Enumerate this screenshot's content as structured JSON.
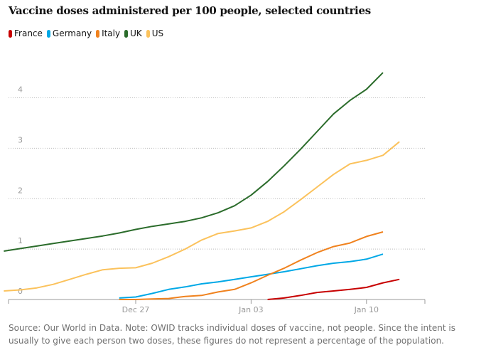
{
  "chart_data": {
    "type": "line",
    "title": "Vaccine doses administered per 100 people, selected countries",
    "source": "Source: Our World in Data. Note: OWID tracks individual doses of vaccine, not people. Since the intent is usually to give each person two doses, these figures do not represent a percentage of the population.",
    "categories": [
      null,
      null,
      null,
      null,
      null,
      null,
      null,
      null,
      "Dec 27",
      null,
      null,
      null,
      null,
      null,
      null,
      "Jan 03",
      null,
      null,
      null,
      null,
      null,
      null,
      "Jan 10",
      null,
      null,
      null
    ],
    "ylim": [
      0,
      4.6
    ],
    "yticks": [
      0,
      1,
      2,
      3,
      4
    ],
    "grid": true,
    "series": [
      {
        "name": "France",
        "color": "#c70000",
        "values": [
          null,
          null,
          null,
          null,
          null,
          null,
          null,
          null,
          null,
          null,
          null,
          null,
          null,
          null,
          null,
          null,
          0.0,
          0.03,
          0.08,
          0.14,
          0.17,
          0.2,
          0.24,
          0.33,
          0.4,
          null
        ]
      },
      {
        "name": "Germany",
        "color": "#00a8e6",
        "values": [
          null,
          null,
          null,
          null,
          null,
          null,
          null,
          0.03,
          0.05,
          0.12,
          0.2,
          0.25,
          0.31,
          0.35,
          0.4,
          0.45,
          0.5,
          0.55,
          0.61,
          0.67,
          0.72,
          0.75,
          0.8,
          0.9,
          null,
          null
        ]
      },
      {
        "name": "Italy",
        "color": "#f0821e",
        "values": [
          null,
          null,
          null,
          null,
          null,
          null,
          null,
          0.0,
          0.0,
          0.01,
          0.02,
          0.06,
          0.08,
          0.15,
          0.2,
          0.33,
          0.48,
          0.62,
          0.78,
          0.93,
          1.05,
          1.12,
          1.25,
          1.34,
          null,
          null
        ]
      },
      {
        "name": "UK",
        "color": "#2b6c2b",
        "values": [
          0.96,
          1.01,
          1.06,
          1.11,
          1.16,
          1.21,
          1.26,
          1.32,
          1.39,
          1.45,
          1.5,
          1.55,
          1.62,
          1.72,
          1.86,
          2.07,
          2.34,
          2.65,
          2.98,
          3.33,
          3.68,
          3.95,
          4.17,
          4.5,
          null,
          null
        ]
      },
      {
        "name": "US",
        "color": "#fbc25c",
        "values": [
          0.17,
          0.19,
          0.23,
          0.3,
          0.4,
          0.5,
          0.59,
          0.62,
          0.63,
          0.72,
          0.85,
          1.0,
          1.18,
          1.31,
          1.36,
          1.42,
          1.55,
          1.74,
          1.98,
          2.23,
          2.48,
          2.69,
          2.76,
          2.86,
          3.13,
          null
        ]
      }
    ]
  }
}
